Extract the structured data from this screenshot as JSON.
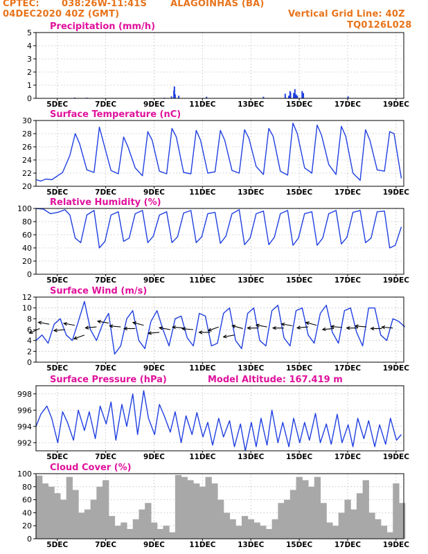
{
  "header": {
    "source": "CPTEC:",
    "coords": "038:26W-11:41S",
    "location": "ALAGOINHAS (BA)",
    "init_time": "04DEC2020 40Z (GMT)",
    "grid_label": "Vertical Grid Line: 40Z",
    "run_id": "TQ0126L028"
  },
  "colors": {
    "header": "#e8731a",
    "title": "#e0119c",
    "line": "#1f3fe0",
    "bar": "#a8a8a8",
    "wind_arrow": "#000000"
  },
  "chart_data": [
    {
      "type": "bar",
      "title": "Precipitation (mm/h)",
      "ylim": [
        0,
        5
      ],
      "yticks": [
        "0",
        "1",
        "2",
        "3",
        "4",
        "5"
      ],
      "xlabels": [
        "5DEC",
        "7DEC",
        "9DEC",
        "11DEC",
        "13DEC",
        "15DEC",
        "17DEC",
        "19DEC"
      ],
      "grid": true,
      "x": [
        1.6,
        2.1,
        5.3,
        5.6,
        5.7,
        5.72,
        5.75,
        5.9,
        7.05,
        9.4,
        10.3,
        10.45,
        10.5,
        10.52,
        10.65,
        10.7,
        10.75,
        10.8,
        11.0,
        11.05,
        12.9
      ],
      "values": [
        0.06,
        0.05,
        0.05,
        0.15,
        0.6,
        0.9,
        0.3,
        0.2,
        0.12,
        0.12,
        0.35,
        0.2,
        0.55,
        0.45,
        0.4,
        0.7,
        0.3,
        0.2,
        0.55,
        0.4,
        0.15
      ]
    },
    {
      "type": "line",
      "title": "Surface Temperature (nC)",
      "ylim": [
        20,
        30
      ],
      "yticks": [
        "20",
        "22",
        "24",
        "26",
        "28",
        "30"
      ],
      "xlabels": [
        "5DEC",
        "7DEC",
        "9DEC",
        "11DEC",
        "13DEC",
        "15DEC",
        "17DEC",
        "19DEC"
      ],
      "grid": true,
      "x": [
        0.0,
        0.2,
        0.4,
        0.65,
        1.1,
        1.4,
        1.62,
        1.8,
        2.1,
        2.4,
        2.62,
        2.8,
        3.1,
        3.4,
        3.62,
        3.8,
        4.1,
        4.4,
        4.62,
        4.8,
        5.1,
        5.4,
        5.62,
        5.8,
        6.1,
        6.4,
        6.62,
        6.8,
        7.1,
        7.4,
        7.62,
        7.8,
        8.1,
        8.4,
        8.62,
        8.8,
        9.1,
        9.4,
        9.62,
        9.8,
        10.1,
        10.4,
        10.62,
        10.8,
        11.1,
        11.4,
        11.62,
        11.8,
        12.1,
        12.4,
        12.62,
        12.8,
        13.1,
        13.4,
        13.62,
        13.8,
        14.1,
        14.4,
        14.62,
        14.8,
        15.1
      ],
      "values": [
        21.0,
        20.8,
        21.1,
        21.0,
        22.1,
        24.7,
        28.0,
        26.5,
        22.5,
        22.1,
        29.0,
        26.5,
        22.4,
        21.9,
        27.5,
        26.0,
        22.8,
        21.6,
        28.3,
        27.0,
        22.3,
        21.9,
        28.8,
        27.5,
        22.1,
        21.9,
        28.5,
        27.0,
        22.0,
        22.2,
        28.5,
        27.0,
        22.4,
        22.0,
        28.6,
        27.3,
        23.0,
        21.8,
        28.8,
        27.6,
        22.3,
        21.7,
        29.6,
        28.0,
        22.8,
        22.0,
        29.3,
        27.8,
        23.3,
        21.8,
        29.1,
        27.6,
        22.0,
        20.9,
        28.6,
        27.0,
        22.5,
        22.3,
        28.3,
        28.0,
        21.2
      ]
    },
    {
      "type": "line",
      "title": "Relative Humidity (%)",
      "ylim": [
        0,
        100
      ],
      "yticks": [
        "0",
        "20",
        "40",
        "60",
        "80",
        "100"
      ],
      "xlabels": [
        "5DEC",
        "7DEC",
        "9DEC",
        "11DEC",
        "13DEC",
        "15DEC",
        "17DEC",
        "19DEC"
      ],
      "grid": true,
      "x": [
        0.0,
        0.3,
        0.6,
        0.9,
        1.2,
        1.4,
        1.62,
        1.85,
        2.1,
        2.4,
        2.62,
        2.85,
        3.1,
        3.4,
        3.62,
        3.85,
        4.1,
        4.4,
        4.62,
        4.85,
        5.1,
        5.4,
        5.62,
        5.85,
        6.1,
        6.4,
        6.62,
        6.85,
        7.1,
        7.4,
        7.62,
        7.85,
        8.1,
        8.4,
        8.62,
        8.85,
        9.1,
        9.4,
        9.62,
        9.85,
        10.1,
        10.4,
        10.62,
        10.85,
        11.1,
        11.4,
        11.62,
        11.85,
        12.1,
        12.4,
        12.62,
        12.85,
        13.1,
        13.4,
        13.62,
        13.85,
        14.1,
        14.4,
        14.62,
        14.85,
        15.1
      ],
      "values": [
        100,
        99,
        92,
        94,
        98,
        90,
        55,
        48,
        90,
        97,
        40,
        50,
        90,
        95,
        50,
        55,
        92,
        97,
        48,
        58,
        90,
        95,
        48,
        57,
        93,
        97,
        48,
        57,
        92,
        94,
        47,
        58,
        92,
        98,
        45,
        55,
        92,
        96,
        45,
        56,
        92,
        97,
        44,
        55,
        92,
        95,
        44,
        55,
        92,
        97,
        46,
        56,
        94,
        97,
        48,
        55,
        95,
        96,
        40,
        44,
        72
      ]
    },
    {
      "type": "line",
      "title": "Surface Wind (m/s)",
      "ylim": [
        0,
        12
      ],
      "yticks": [
        "0",
        "2",
        "4",
        "6",
        "8",
        "10",
        "12"
      ],
      "xlabels": [
        "5DEC",
        "7DEC",
        "9DEC",
        "11DEC",
        "13DEC",
        "15DEC",
        "17DEC",
        "19DEC"
      ],
      "grid": true,
      "x": [
        0.0,
        0.25,
        0.5,
        0.75,
        1.0,
        1.25,
        1.5,
        1.75,
        2.0,
        2.25,
        2.5,
        2.75,
        3.0,
        3.25,
        3.5,
        3.75,
        4.0,
        4.25,
        4.5,
        4.75,
        5.0,
        5.25,
        5.5,
        5.75,
        6.0,
        6.25,
        6.5,
        6.75,
        7.0,
        7.25,
        7.5,
        7.75,
        8.0,
        8.25,
        8.5,
        8.75,
        9.0,
        9.25,
        9.5,
        9.75,
        10.0,
        10.25,
        10.5,
        10.75,
        11.0,
        11.25,
        11.5,
        11.75,
        12.0,
        12.25,
        12.5,
        12.75,
        13.0,
        13.25,
        13.5,
        13.75,
        14.0,
        14.25,
        14.5,
        14.75,
        15.0,
        15.25
      ],
      "values": [
        4.0,
        5.0,
        3.5,
        7.0,
        8.0,
        5.0,
        4.0,
        7.5,
        11.2,
        6.0,
        4.0,
        7.0,
        9.0,
        1.5,
        3.0,
        8.0,
        9.5,
        4.0,
        2.5,
        7.5,
        9.5,
        6.0,
        3.0,
        8.0,
        8.5,
        4.5,
        3.0,
        9.0,
        8.5,
        3.0,
        3.5,
        9.0,
        10.0,
        4.0,
        2.5,
        9.0,
        10.0,
        4.0,
        3.0,
        9.5,
        10.5,
        4.5,
        3.0,
        9.5,
        10.0,
        5.0,
        3.5,
        9.0,
        10.5,
        5.5,
        3.5,
        9.5,
        10.0,
        5.5,
        3.0,
        10.0,
        10.0,
        5.0,
        4.0,
        8.0,
        7.5,
        6.5
      ],
      "wind_arrows": [
        {
          "x": 0.15,
          "y": 6.2,
          "dir": 25
        },
        {
          "x": 0.55,
          "y": 7.0,
          "dir": 350
        },
        {
          "x": 1.2,
          "y": 6.0,
          "dir": 5
        },
        {
          "x": 1.6,
          "y": 6.8,
          "dir": 350
        },
        {
          "x": 2.0,
          "y": 5.0,
          "dir": 20
        },
        {
          "x": 2.5,
          "y": 6.5,
          "dir": 5
        },
        {
          "x": 3.0,
          "y": 7.2,
          "dir": 350
        },
        {
          "x": 3.5,
          "y": 6.5,
          "dir": 355
        },
        {
          "x": 4.1,
          "y": 6.2,
          "dir": 0
        },
        {
          "x": 4.45,
          "y": 6.8,
          "dir": 345
        },
        {
          "x": 5.1,
          "y": 5.5,
          "dir": 5
        },
        {
          "x": 5.55,
          "y": 6.0,
          "dir": 350
        },
        {
          "x": 6.1,
          "y": 6.3,
          "dir": 355
        },
        {
          "x": 6.5,
          "y": 6.0,
          "dir": 355
        },
        {
          "x": 7.2,
          "y": 5.5,
          "dir": 0
        },
        {
          "x": 7.55,
          "y": 6.5,
          "dir": 20
        },
        {
          "x": 8.2,
          "y": 5.0,
          "dir": 10
        },
        {
          "x": 8.55,
          "y": 6.2,
          "dir": 345
        },
        {
          "x": 9.2,
          "y": 6.3,
          "dir": 0
        },
        {
          "x": 9.55,
          "y": 6.5,
          "dir": 350
        },
        {
          "x": 10.25,
          "y": 6.3,
          "dir": 0
        },
        {
          "x": 10.6,
          "y": 6.7,
          "dir": 350
        },
        {
          "x": 11.25,
          "y": 6.5,
          "dir": 5
        },
        {
          "x": 11.6,
          "y": 6.8,
          "dir": 345
        },
        {
          "x": 12.3,
          "y": 6.2,
          "dir": 5
        },
        {
          "x": 12.65,
          "y": 6.4,
          "dir": 355
        },
        {
          "x": 13.3,
          "y": 6.3,
          "dir": 0
        },
        {
          "x": 13.65,
          "y": 6.5,
          "dir": 355
        },
        {
          "x": 14.3,
          "y": 6.2,
          "dir": 0
        },
        {
          "x": 14.75,
          "y": 6.3,
          "dir": 355
        }
      ]
    },
    {
      "type": "line",
      "title": "Surface Pressure (hPa)",
      "annotation": "Model Altitude: 167.419  m",
      "ylim": [
        991,
        999
      ],
      "yticks": [
        "992",
        "994",
        "996",
        "998"
      ],
      "xlabels": [
        "5DEC",
        "7DEC",
        "9DEC",
        "11DEC",
        "13DEC",
        "15DEC",
        "17DEC",
        "19DEC"
      ],
      "grid": true,
      "x": [
        0.0,
        0.2,
        0.45,
        0.65,
        0.9,
        1.1,
        1.3,
        1.55,
        1.75,
        2.0,
        2.2,
        2.45,
        2.65,
        2.9,
        3.1,
        3.3,
        3.55,
        3.75,
        4.0,
        4.2,
        4.45,
        4.65,
        4.9,
        5.1,
        5.3,
        5.55,
        5.75,
        6.0,
        6.2,
        6.45,
        6.65,
        6.9,
        7.1,
        7.3,
        7.55,
        7.75,
        8.0,
        8.2,
        8.45,
        8.65,
        8.9,
        9.1,
        9.3,
        9.55,
        9.75,
        10.0,
        10.2,
        10.45,
        10.65,
        10.9,
        11.1,
        11.3,
        11.55,
        11.75,
        12.0,
        12.2,
        12.45,
        12.65,
        12.9,
        13.1,
        13.3,
        13.55,
        13.75,
        14.0,
        14.2,
        14.45,
        14.65,
        14.9,
        15.1
      ],
      "values": [
        994.0,
        995.5,
        996.5,
        995.0,
        992.0,
        995.8,
        994.5,
        992.3,
        996.0,
        993.5,
        995.8,
        992.5,
        996.5,
        994.3,
        997.0,
        992.3,
        996.7,
        994.0,
        998.0,
        993.0,
        998.4,
        995.0,
        993.0,
        996.7,
        995.3,
        993.3,
        995.8,
        992.0,
        995.3,
        993.0,
        995.7,
        992.7,
        994.5,
        991.7,
        995.0,
        992.7,
        994.7,
        991.5,
        994.3,
        991.0,
        994.5,
        991.5,
        995.0,
        991.7,
        996.0,
        992.0,
        994.5,
        991.5,
        995.0,
        992.0,
        994.5,
        992.3,
        995.6,
        992.0,
        994.3,
        991.8,
        995.5,
        992.0,
        994.2,
        991.5,
        995.0,
        992.5,
        994.7,
        991.5,
        994.2,
        991.8,
        995.0,
        992.3,
        993.0
      ]
    },
    {
      "type": "bar",
      "title": "Cloud Cover (%)",
      "ylim": [
        0,
        100
      ],
      "yticks": [
        "0",
        "20",
        "40",
        "60",
        "80",
        "100"
      ],
      "xlabels": [
        "5DEC",
        "7DEC",
        "9DEC",
        "11DEC",
        "13DEC",
        "15DEC",
        "17DEC",
        "19DEC"
      ],
      "grid": true,
      "x": [
        0.0,
        0.25,
        0.5,
        0.75,
        1.0,
        1.25,
        1.5,
        1.75,
        2.0,
        2.25,
        2.5,
        2.75,
        3.0,
        3.25,
        3.5,
        3.75,
        4.0,
        4.25,
        4.5,
        4.75,
        5.0,
        5.25,
        5.5,
        5.75,
        6.0,
        6.25,
        6.5,
        6.75,
        7.0,
        7.25,
        7.5,
        7.75,
        8.0,
        8.25,
        8.5,
        8.75,
        9.0,
        9.25,
        9.5,
        9.75,
        10.0,
        10.25,
        10.5,
        10.75,
        11.0,
        11.25,
        11.5,
        11.75,
        12.0,
        12.25,
        12.5,
        12.75,
        13.0,
        13.25,
        13.5,
        13.75,
        14.0,
        14.25,
        14.5,
        14.75,
        15.0
      ],
      "values": [
        97,
        85,
        80,
        70,
        60,
        95,
        75,
        40,
        45,
        60,
        80,
        90,
        35,
        20,
        25,
        15,
        30,
        45,
        55,
        25,
        15,
        20,
        10,
        98,
        95,
        90,
        85,
        80,
        95,
        85,
        60,
        40,
        30,
        20,
        35,
        30,
        25,
        20,
        15,
        30,
        55,
        60,
        75,
        95,
        90,
        80,
        95,
        55,
        25,
        20,
        40,
        60,
        45,
        70,
        90,
        40,
        30,
        20,
        10,
        85,
        55
      ]
    }
  ]
}
